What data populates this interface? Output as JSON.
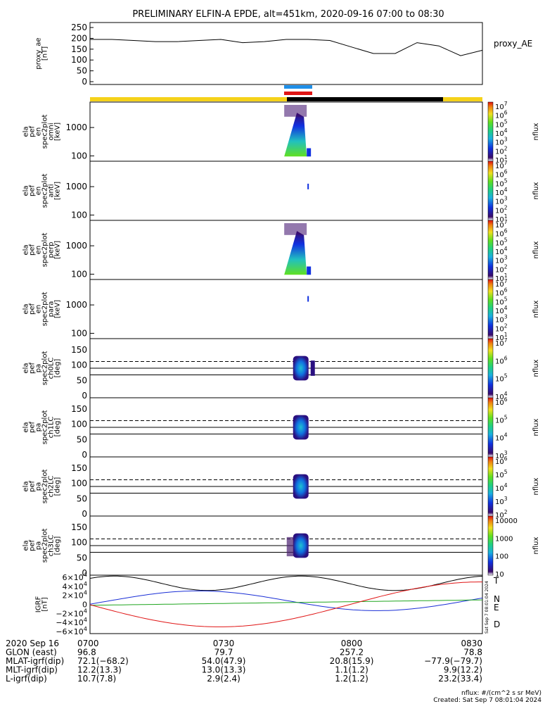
{
  "title": "PRELIMINARY ELFIN-A EPDE, alt=451km, 2020-09-16 07:00 to 08:30",
  "time_axis": {
    "start": "07:00",
    "end": "08:30",
    "ticks": [
      "0700",
      "0730",
      "0800",
      "0830"
    ]
  },
  "panels": [
    {
      "id": "proxy_ae",
      "ylabel": [
        "proxy_ae",
        "[nT]"
      ],
      "type": "line",
      "ylim": [
        0,
        260
      ],
      "ticks": [
        "250",
        "200",
        "150",
        "100",
        "50",
        "0"
      ],
      "tickvals": [
        250,
        200,
        150,
        100,
        50,
        0
      ],
      "right_label": "proxy_AE"
    },
    {
      "id": "en_omni",
      "ylabel": [
        "ela",
        "pef",
        "en",
        "spec2plot",
        "omni",
        "[keV]"
      ],
      "type": "spectrogram",
      "ticks": [
        "1000",
        "100"
      ],
      "colorbar": [
        "10^7",
        "10^6",
        "10^5",
        "10^4",
        "10^3",
        "10^2",
        "10^1"
      ],
      "cb_label": "nflux"
    },
    {
      "id": "en_anti",
      "ylabel": [
        "ela",
        "pef",
        "en",
        "spec2plot",
        "anti",
        "[keV]"
      ],
      "type": "spectrogram",
      "ticks": [
        "1000",
        "100"
      ],
      "colorbar": [
        "10^7",
        "10^6",
        "10^5",
        "10^4",
        "10^3",
        "10^2",
        "10^1"
      ],
      "cb_label": "nflux"
    },
    {
      "id": "en_perp",
      "ylabel": [
        "ela",
        "pef",
        "en",
        "spec2plot",
        "perp",
        "[keV]"
      ],
      "type": "spectrogram",
      "ticks": [
        "1000",
        "100"
      ],
      "colorbar": [
        "10^7",
        "10^6",
        "10^5",
        "10^4",
        "10^3",
        "10^2",
        "10^1"
      ],
      "cb_label": "nflux"
    },
    {
      "id": "en_para",
      "ylabel": [
        "ela",
        "pef",
        "en",
        "spec2plot",
        "para",
        "[keV]"
      ],
      "type": "spectrogram",
      "ticks": [
        "1000",
        "100"
      ],
      "colorbar": [
        "10^7",
        "10^6",
        "10^5",
        "10^4",
        "10^3",
        "10^2",
        "10^1"
      ],
      "cb_label": "nflux"
    },
    {
      "id": "pa_ch0",
      "ylabel": [
        "ela",
        "pef",
        "pa",
        "spec2plot",
        "ch0LC",
        "[deg]"
      ],
      "type": "pitch",
      "ticks": [
        "150",
        "100",
        "50",
        "0"
      ],
      "colorbar": [
        "10^7",
        "10^6",
        "10^5",
        "10^4"
      ],
      "cb_label": "nflux"
    },
    {
      "id": "pa_ch1",
      "ylabel": [
        "ela",
        "pef",
        "pa",
        "spec2plot",
        "ch1LC",
        "[deg]"
      ],
      "type": "pitch",
      "ticks": [
        "150",
        "100",
        "50",
        "0"
      ],
      "colorbar": [
        "10^6",
        "10^5",
        "10^4",
        "10^3"
      ],
      "cb_label": "nflux"
    },
    {
      "id": "pa_ch2",
      "ylabel": [
        "ela",
        "pef",
        "pa",
        "spec2plot",
        "ch2LC",
        "[deg]"
      ],
      "type": "pitch",
      "ticks": [
        "150",
        "100",
        "50",
        "0"
      ],
      "colorbar": [
        "10^6",
        "10^5",
        "10^4",
        "10^3",
        "10^2"
      ],
      "cb_label": "nflux"
    },
    {
      "id": "pa_ch3",
      "ylabel": [
        "ela",
        "pef",
        "pa",
        "spec2plot",
        "ch3LC",
        "[deg]"
      ],
      "type": "pitch",
      "ticks": [
        "150",
        "100",
        "50",
        "0"
      ],
      "colorbar": [
        "10000",
        "1000",
        "100",
        "10"
      ],
      "cb_label": "nflux"
    },
    {
      "id": "bgrf",
      "ylabel": [
        "IGRF",
        "[nT]"
      ],
      "type": "lines",
      "ticks": [
        "6×10^4",
        "4×10^4",
        "2×10^4",
        "0",
        "−2×10^4",
        "−4×10^4",
        "−6×10^4"
      ],
      "tickvals": [
        60000,
        40000,
        20000,
        0,
        -20000,
        -40000,
        -60000
      ],
      "legend": [
        "T",
        "N",
        "E",
        "D"
      ]
    }
  ],
  "colors": {
    "T": "#000000",
    "N": "#1a2fd6",
    "E": "#1fa51f",
    "D": "#e01515",
    "yellow": "#f5d21a",
    "blue": "#1f8fe8",
    "red": "#e01515"
  },
  "footer": {
    "rows": [
      [
        "2020 Sep 16",
        "0700",
        "0730",
        "0800",
        "0830"
      ],
      [
        "GLON (east)",
        "96.8",
        "79.7",
        "257.2",
        "78.8"
      ],
      [
        "MLAT-igrf(dip)",
        "72.1(−68.2)",
        "54.0(47.9)",
        "20.8(15.9)",
        "−77.9(−79.7)"
      ],
      [
        "MLT-igrf(dip)",
        "12.2(13.3)",
        "13.0(13.3)",
        "1.1(1.2)",
        "9.9(12.2)"
      ],
      [
        "L-igrf(dip)",
        "10.7(7.8)",
        "2.9(2.4)",
        "1.2(1.2)",
        "23.2(33.4)"
      ]
    ],
    "units": "nflux: #/(cm^2 s sr MeV)",
    "created": "Created: Sat Sep  7 08:01:04 2024",
    "stamp": "Sat Sep  7 08:01:04 2024"
  },
  "chart_data": {
    "type": "line",
    "title": "PRELIMINARY ELFIN-A EPDE, alt=451km, 2020-09-16 07:00 to 08:30",
    "x": [
      "07:00",
      "07:05",
      "07:10",
      "07:15",
      "07:20",
      "07:25",
      "07:30",
      "07:35",
      "07:40",
      "07:45",
      "07:50",
      "07:55",
      "08:00",
      "08:05",
      "08:10",
      "08:15",
      "08:20",
      "08:25",
      "08:30"
    ],
    "series": [
      {
        "name": "proxy_AE",
        "values": [
          195,
          195,
          190,
          185,
          185,
          190,
          195,
          180,
          185,
          195,
          195,
          190,
          160,
          130,
          130,
          180,
          165,
          120,
          145
        ]
      }
    ],
    "ylabel": "proxy_ae [nT]",
    "ylim": [
      0,
      260
    ]
  }
}
